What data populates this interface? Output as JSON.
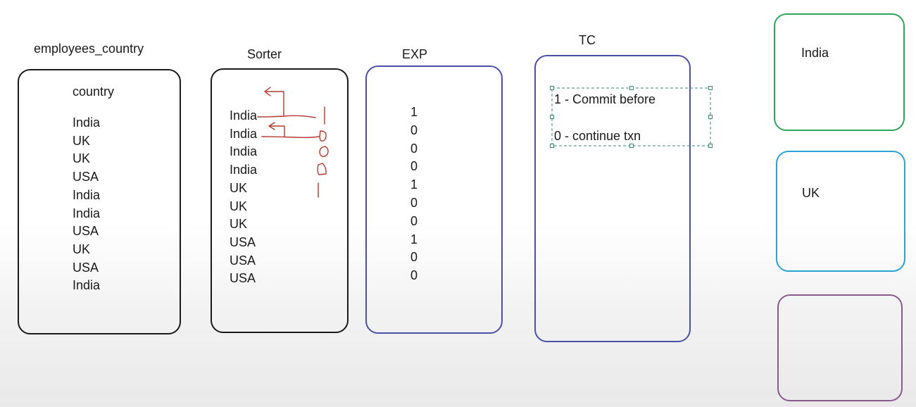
{
  "employees_country": {
    "title": "employees_country",
    "header": "country",
    "rows": [
      "India",
      "UK",
      "UK",
      "USA",
      "India",
      "India",
      "USA",
      "UK",
      "USA",
      "India"
    ]
  },
  "sorter": {
    "title": "Sorter",
    "rows": [
      "India",
      "India",
      "India",
      "India",
      "UK",
      "UK",
      "UK",
      "USA",
      "USA",
      "USA"
    ]
  },
  "exp": {
    "title": "EXP",
    "values": [
      "1",
      "0",
      "0",
      "0",
      "1",
      "0",
      "0",
      "1",
      "0",
      "0"
    ]
  },
  "tc": {
    "title": "TC",
    "line1": "1 - Commit before",
    "line2": "0 - continue txn"
  },
  "targets": {
    "india": "India",
    "uk": "UK"
  },
  "colors": {
    "black_box": "#1a1a1a",
    "exp_box": "#4a4fa8",
    "tc_box": "#4a4fa8",
    "india_box": "#2fa65a",
    "uk_box": "#2aa3d3",
    "third_box": "#8a5a8a",
    "annotation": "#b03a2e",
    "selection": "#3a8a7a"
  }
}
